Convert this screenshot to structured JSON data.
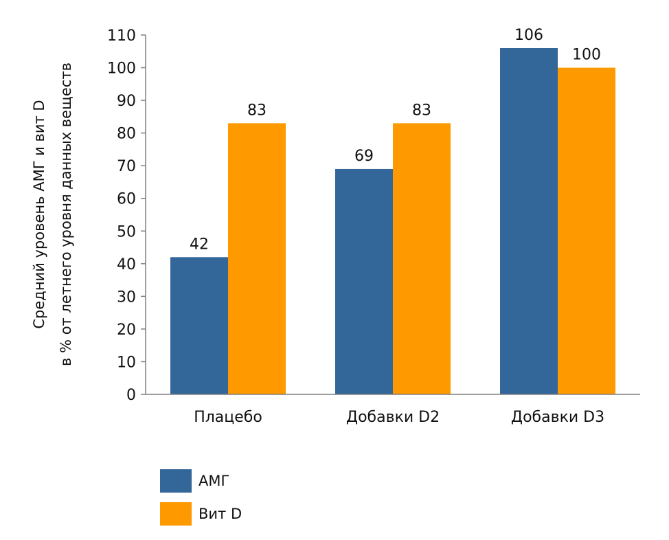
{
  "chart_data": {
    "type": "bar",
    "categories": [
      "Плацебо",
      "Добавки D2",
      "Добавки D3"
    ],
    "series": [
      {
        "name": "АМГ",
        "color": "#336699",
        "values": [
          42,
          69,
          106
        ]
      },
      {
        "name": "Вит D",
        "color": "#FF9900",
        "values": [
          83,
          83,
          100
        ]
      }
    ],
    "data_labels": [
      [
        "42",
        "69",
        "106"
      ],
      [
        "83",
        "83",
        "100"
      ]
    ],
    "ylabel_line1": "Средний уровень АМГ и вит D",
    "ylabel_line2": "в % от летнего уровня данных веществ",
    "ylim": [
      0,
      110
    ],
    "yticks": [
      0,
      10,
      20,
      30,
      40,
      50,
      60,
      70,
      80,
      90,
      100,
      110
    ],
    "legend_position": "bottom-left"
  }
}
